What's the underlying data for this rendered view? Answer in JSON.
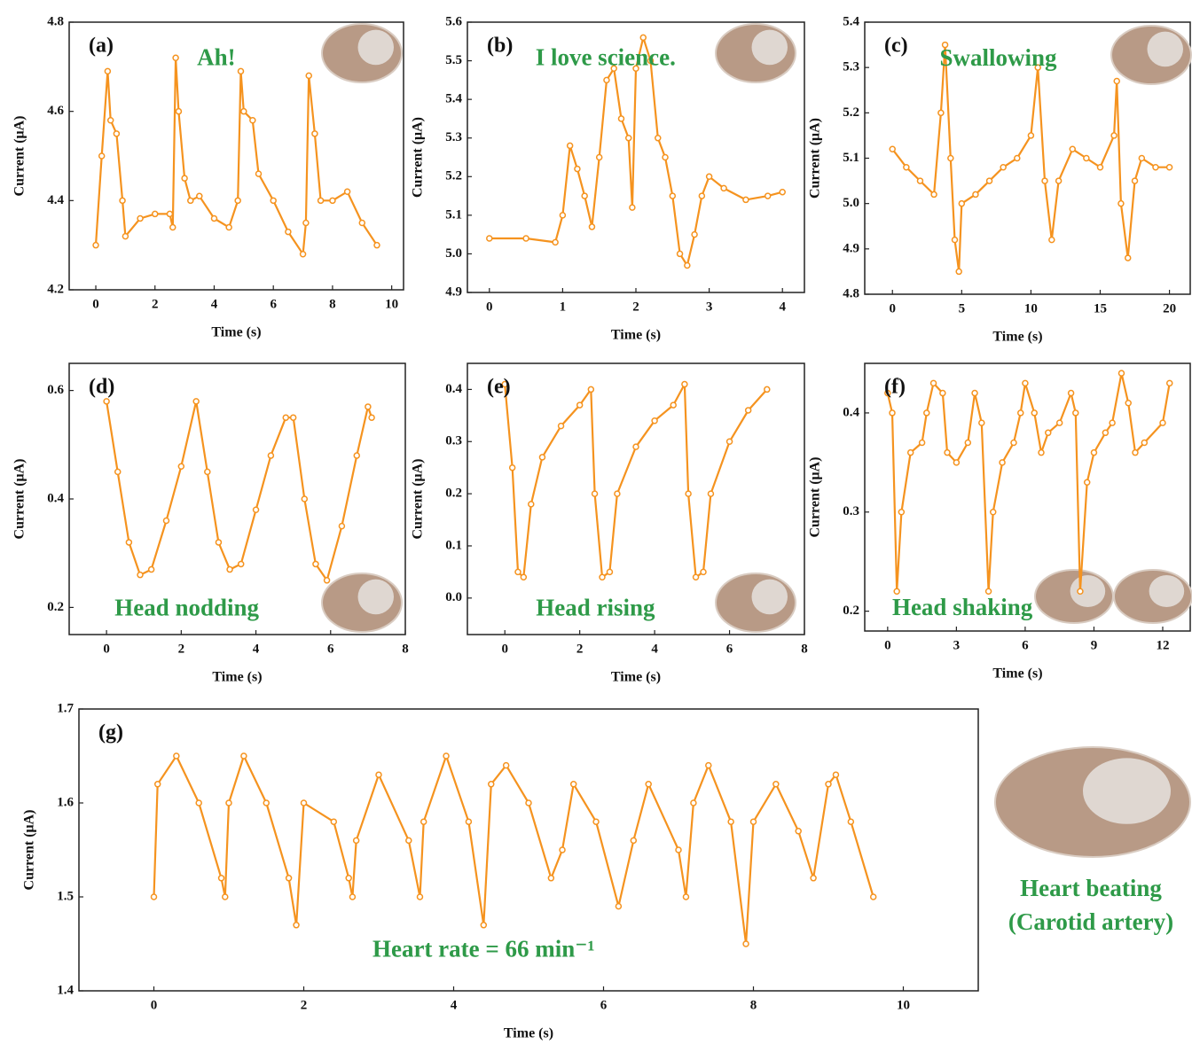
{
  "chart_data": [
    {
      "type": "line",
      "label": "(a)",
      "annotation": "Ah!",
      "x_label": "Time (s)",
      "y_label": "Current (μA)",
      "xlim": [
        -0.9,
        10.4
      ],
      "xticks": [
        0,
        2,
        4,
        6,
        8,
        10
      ],
      "ylim": [
        4.2,
        4.8
      ],
      "yticks": [
        4.2,
        4.4,
        4.6,
        4.8
      ],
      "series": [
        {
          "color": "#f5931f",
          "x": [
            0,
            0.2,
            0.4,
            0.5,
            0.7,
            0.9,
            1.0,
            1.5,
            2.0,
            2.5,
            2.6,
            2.7,
            2.8,
            3.0,
            3.2,
            3.5,
            4.0,
            4.5,
            4.8,
            4.9,
            5.0,
            5.3,
            5.5,
            6.0,
            6.5,
            7.0,
            7.1,
            7.2,
            7.4,
            7.6,
            8.0,
            8.5,
            9.0,
            9.5
          ],
          "values": [
            4.3,
            4.5,
            4.69,
            4.58,
            4.55,
            4.4,
            4.32,
            4.36,
            4.37,
            4.37,
            4.34,
            4.72,
            4.6,
            4.45,
            4.4,
            4.41,
            4.36,
            4.34,
            4.4,
            4.69,
            4.6,
            4.58,
            4.46,
            4.4,
            4.33,
            4.28,
            4.35,
            4.68,
            4.55,
            4.4,
            4.4,
            4.42,
            4.35,
            4.3
          ]
        }
      ]
    },
    {
      "type": "line",
      "label": "(b)",
      "annotation": "I love science.",
      "x_label": "Time (s)",
      "y_label": "Current (μA)",
      "xlim": [
        -0.3,
        4.3
      ],
      "xticks": [
        0,
        1,
        2,
        3,
        4
      ],
      "ylim": [
        4.9,
        5.6
      ],
      "yticks": [
        4.9,
        {
          "value": 5,
          "label": "5.0"
        },
        5.1,
        5.2,
        5.3,
        5.4,
        5.5,
        5.6
      ],
      "series": [
        {
          "color": "#f5931f",
          "x": [
            0,
            0.5,
            0.9,
            1.0,
            1.1,
            1.2,
            1.3,
            1.4,
            1.5,
            1.6,
            1.7,
            1.8,
            1.9,
            1.95,
            2.0,
            2.1,
            2.2,
            2.3,
            2.4,
            2.5,
            2.6,
            2.7,
            2.8,
            2.9,
            3.0,
            3.2,
            3.5,
            3.8,
            4.0
          ],
          "values": [
            5.04,
            5.04,
            5.03,
            5.1,
            5.28,
            5.22,
            5.15,
            5.07,
            5.25,
            5.45,
            5.48,
            5.35,
            5.3,
            5.12,
            5.48,
            5.56,
            5.5,
            5.3,
            5.25,
            5.15,
            5.0,
            4.97,
            5.05,
            5.15,
            5.2,
            5.17,
            5.14,
            5.15,
            5.16
          ]
        }
      ]
    },
    {
      "type": "line",
      "label": "(c)",
      "annotation": "Swallowing",
      "x_label": "Time (s)",
      "y_label": "Current (μA)",
      "xlim": [
        -2,
        21.5
      ],
      "xticks": [
        0,
        5,
        10,
        15,
        20
      ],
      "ylim": [
        4.8,
        5.4
      ],
      "yticks": [
        4.8,
        4.9,
        {
          "value": 5,
          "label": "5.0"
        },
        5.1,
        5.2,
        5.3,
        5.4
      ],
      "series": [
        {
          "color": "#f5931f",
          "x": [
            0,
            1,
            2,
            3,
            3.5,
            3.8,
            4.2,
            4.5,
            4.8,
            5,
            6,
            7,
            8,
            9,
            10,
            10.5,
            11,
            11.5,
            12,
            13,
            14,
            15,
            16,
            16.2,
            16.5,
            17,
            17.5,
            18,
            19,
            20
          ],
          "values": [
            5.12,
            5.08,
            5.05,
            5.02,
            5.2,
            5.35,
            5.1,
            4.92,
            4.85,
            5.0,
            5.02,
            5.05,
            5.08,
            5.1,
            5.15,
            5.3,
            5.05,
            4.92,
            5.05,
            5.12,
            5.1,
            5.08,
            5.15,
            5.27,
            5.0,
            4.88,
            5.05,
            5.1,
            5.08,
            5.08
          ]
        }
      ]
    },
    {
      "type": "line",
      "label": "(d)",
      "annotation": "Head nodding",
      "x_label": "Time (s)",
      "y_label": "Current (μA)",
      "xlim": [
        -1,
        8
      ],
      "xticks": [
        0,
        2,
        4,
        6,
        8
      ],
      "ylim": [
        0.15,
        0.65
      ],
      "yticks": [
        0.2,
        0.4,
        0.6
      ],
      "series": [
        {
          "color": "#f5931f",
          "x": [
            0,
            0.3,
            0.6,
            0.9,
            1.2,
            1.6,
            2.0,
            2.4,
            2.7,
            3.0,
            3.3,
            3.6,
            4.0,
            4.4,
            4.8,
            5.0,
            5.3,
            5.6,
            5.9,
            6.3,
            6.7,
            7.0,
            7.1
          ],
          "values": [
            0.58,
            0.45,
            0.32,
            0.26,
            0.27,
            0.36,
            0.46,
            0.58,
            0.45,
            0.32,
            0.27,
            0.28,
            0.38,
            0.48,
            0.55,
            0.55,
            0.4,
            0.28,
            0.25,
            0.35,
            0.48,
            0.57,
            0.55
          ]
        }
      ]
    },
    {
      "type": "line",
      "label": "(e)",
      "annotation": "Head rising",
      "x_label": "Time (s)",
      "y_label": "Current (μA)",
      "xlim": [
        -1,
        8
      ],
      "xticks": [
        0,
        2,
        4,
        6,
        8
      ],
      "ylim": [
        -0.07,
        0.45
      ],
      "yticks": [
        {
          "value": 0,
          "label": "0.0"
        },
        0.1,
        0.2,
        0.3,
        0.4
      ],
      "series": [
        {
          "color": "#f5931f",
          "x": [
            0,
            0.2,
            0.35,
            0.5,
            0.7,
            1.0,
            1.5,
            2.0,
            2.3,
            2.4,
            2.6,
            2.8,
            3.0,
            3.5,
            4.0,
            4.5,
            4.8,
            4.9,
            5.1,
            5.3,
            5.5,
            6.0,
            6.5,
            7.0
          ],
          "values": [
            0.41,
            0.25,
            0.05,
            0.04,
            0.18,
            0.27,
            0.33,
            0.37,
            0.4,
            0.2,
            0.04,
            0.05,
            0.2,
            0.29,
            0.34,
            0.37,
            0.41,
            0.2,
            0.04,
            0.05,
            0.2,
            0.3,
            0.36,
            0.4
          ]
        }
      ]
    },
    {
      "type": "line",
      "label": "(f)",
      "annotation": "Head shaking",
      "x_label": "Time (s)",
      "y_label": "Current (μA)",
      "xlim": [
        -1,
        13.2
      ],
      "xticks": [
        0,
        3,
        6,
        9,
        12
      ],
      "ylim": [
        0.18,
        0.45
      ],
      "yticks": [
        0.2,
        0.3,
        0.4
      ],
      "series": [
        {
          "color": "#f5931f",
          "x": [
            0,
            0.2,
            0.4,
            0.6,
            1.0,
            1.5,
            1.7,
            2.0,
            2.4,
            2.6,
            3.0,
            3.5,
            3.8,
            4.1,
            4.4,
            4.6,
            5.0,
            5.5,
            5.8,
            6.0,
            6.4,
            6.7,
            7.0,
            7.5,
            8.0,
            8.2,
            8.4,
            8.7,
            9.0,
            9.5,
            9.8,
            10.2,
            10.5,
            10.8,
            11.2,
            12,
            12.3
          ],
          "values": [
            0.42,
            0.4,
            0.22,
            0.3,
            0.36,
            0.37,
            0.4,
            0.43,
            0.42,
            0.36,
            0.35,
            0.37,
            0.42,
            0.39,
            0.22,
            0.3,
            0.35,
            0.37,
            0.4,
            0.43,
            0.4,
            0.36,
            0.38,
            0.39,
            0.42,
            0.4,
            0.22,
            0.33,
            0.36,
            0.38,
            0.39,
            0.44,
            0.41,
            0.36,
            0.37,
            0.39,
            0.43
          ]
        }
      ]
    },
    {
      "type": "line",
      "label": "(g)",
      "annotation": "Heart rate = 66 min⁻¹",
      "x_label": "Time (s)",
      "y_label": "Current (μA)",
      "caption": [
        "Heart beating",
        "(Carotid artery)"
      ],
      "xlim": [
        -1,
        11
      ],
      "xticks": [
        0,
        2,
        4,
        6,
        8,
        10
      ],
      "ylim": [
        1.4,
        1.7
      ],
      "yticks": [
        1.4,
        1.5,
        1.6,
        1.7
      ],
      "series": [
        {
          "color": "#f5931f",
          "x": [
            0,
            0.05,
            0.3,
            0.6,
            0.9,
            0.95,
            1.0,
            1.2,
            1.5,
            1.8,
            1.9,
            2.0,
            2.4,
            2.6,
            2.65,
            2.7,
            3.0,
            3.4,
            3.55,
            3.6,
            3.9,
            4.2,
            4.4,
            4.5,
            4.7,
            5.0,
            5.3,
            5.45,
            5.6,
            5.9,
            6.2,
            6.4,
            6.6,
            7.0,
            7.1,
            7.2,
            7.4,
            7.7,
            7.9,
            8.0,
            8.3,
            8.6,
            8.8,
            9.0,
            9.1,
            9.3,
            9.6
          ],
          "values": [
            1.5,
            1.62,
            1.65,
            1.6,
            1.52,
            1.5,
            1.6,
            1.65,
            1.6,
            1.52,
            1.47,
            1.6,
            1.58,
            1.52,
            1.5,
            1.56,
            1.63,
            1.56,
            1.5,
            1.58,
            1.65,
            1.58,
            1.47,
            1.62,
            1.64,
            1.6,
            1.52,
            1.55,
            1.62,
            1.58,
            1.49,
            1.56,
            1.62,
            1.55,
            1.5,
            1.6,
            1.64,
            1.58,
            1.45,
            1.58,
            1.62,
            1.57,
            1.52,
            1.62,
            1.63,
            1.58,
            1.5
          ]
        }
      ]
    }
  ]
}
